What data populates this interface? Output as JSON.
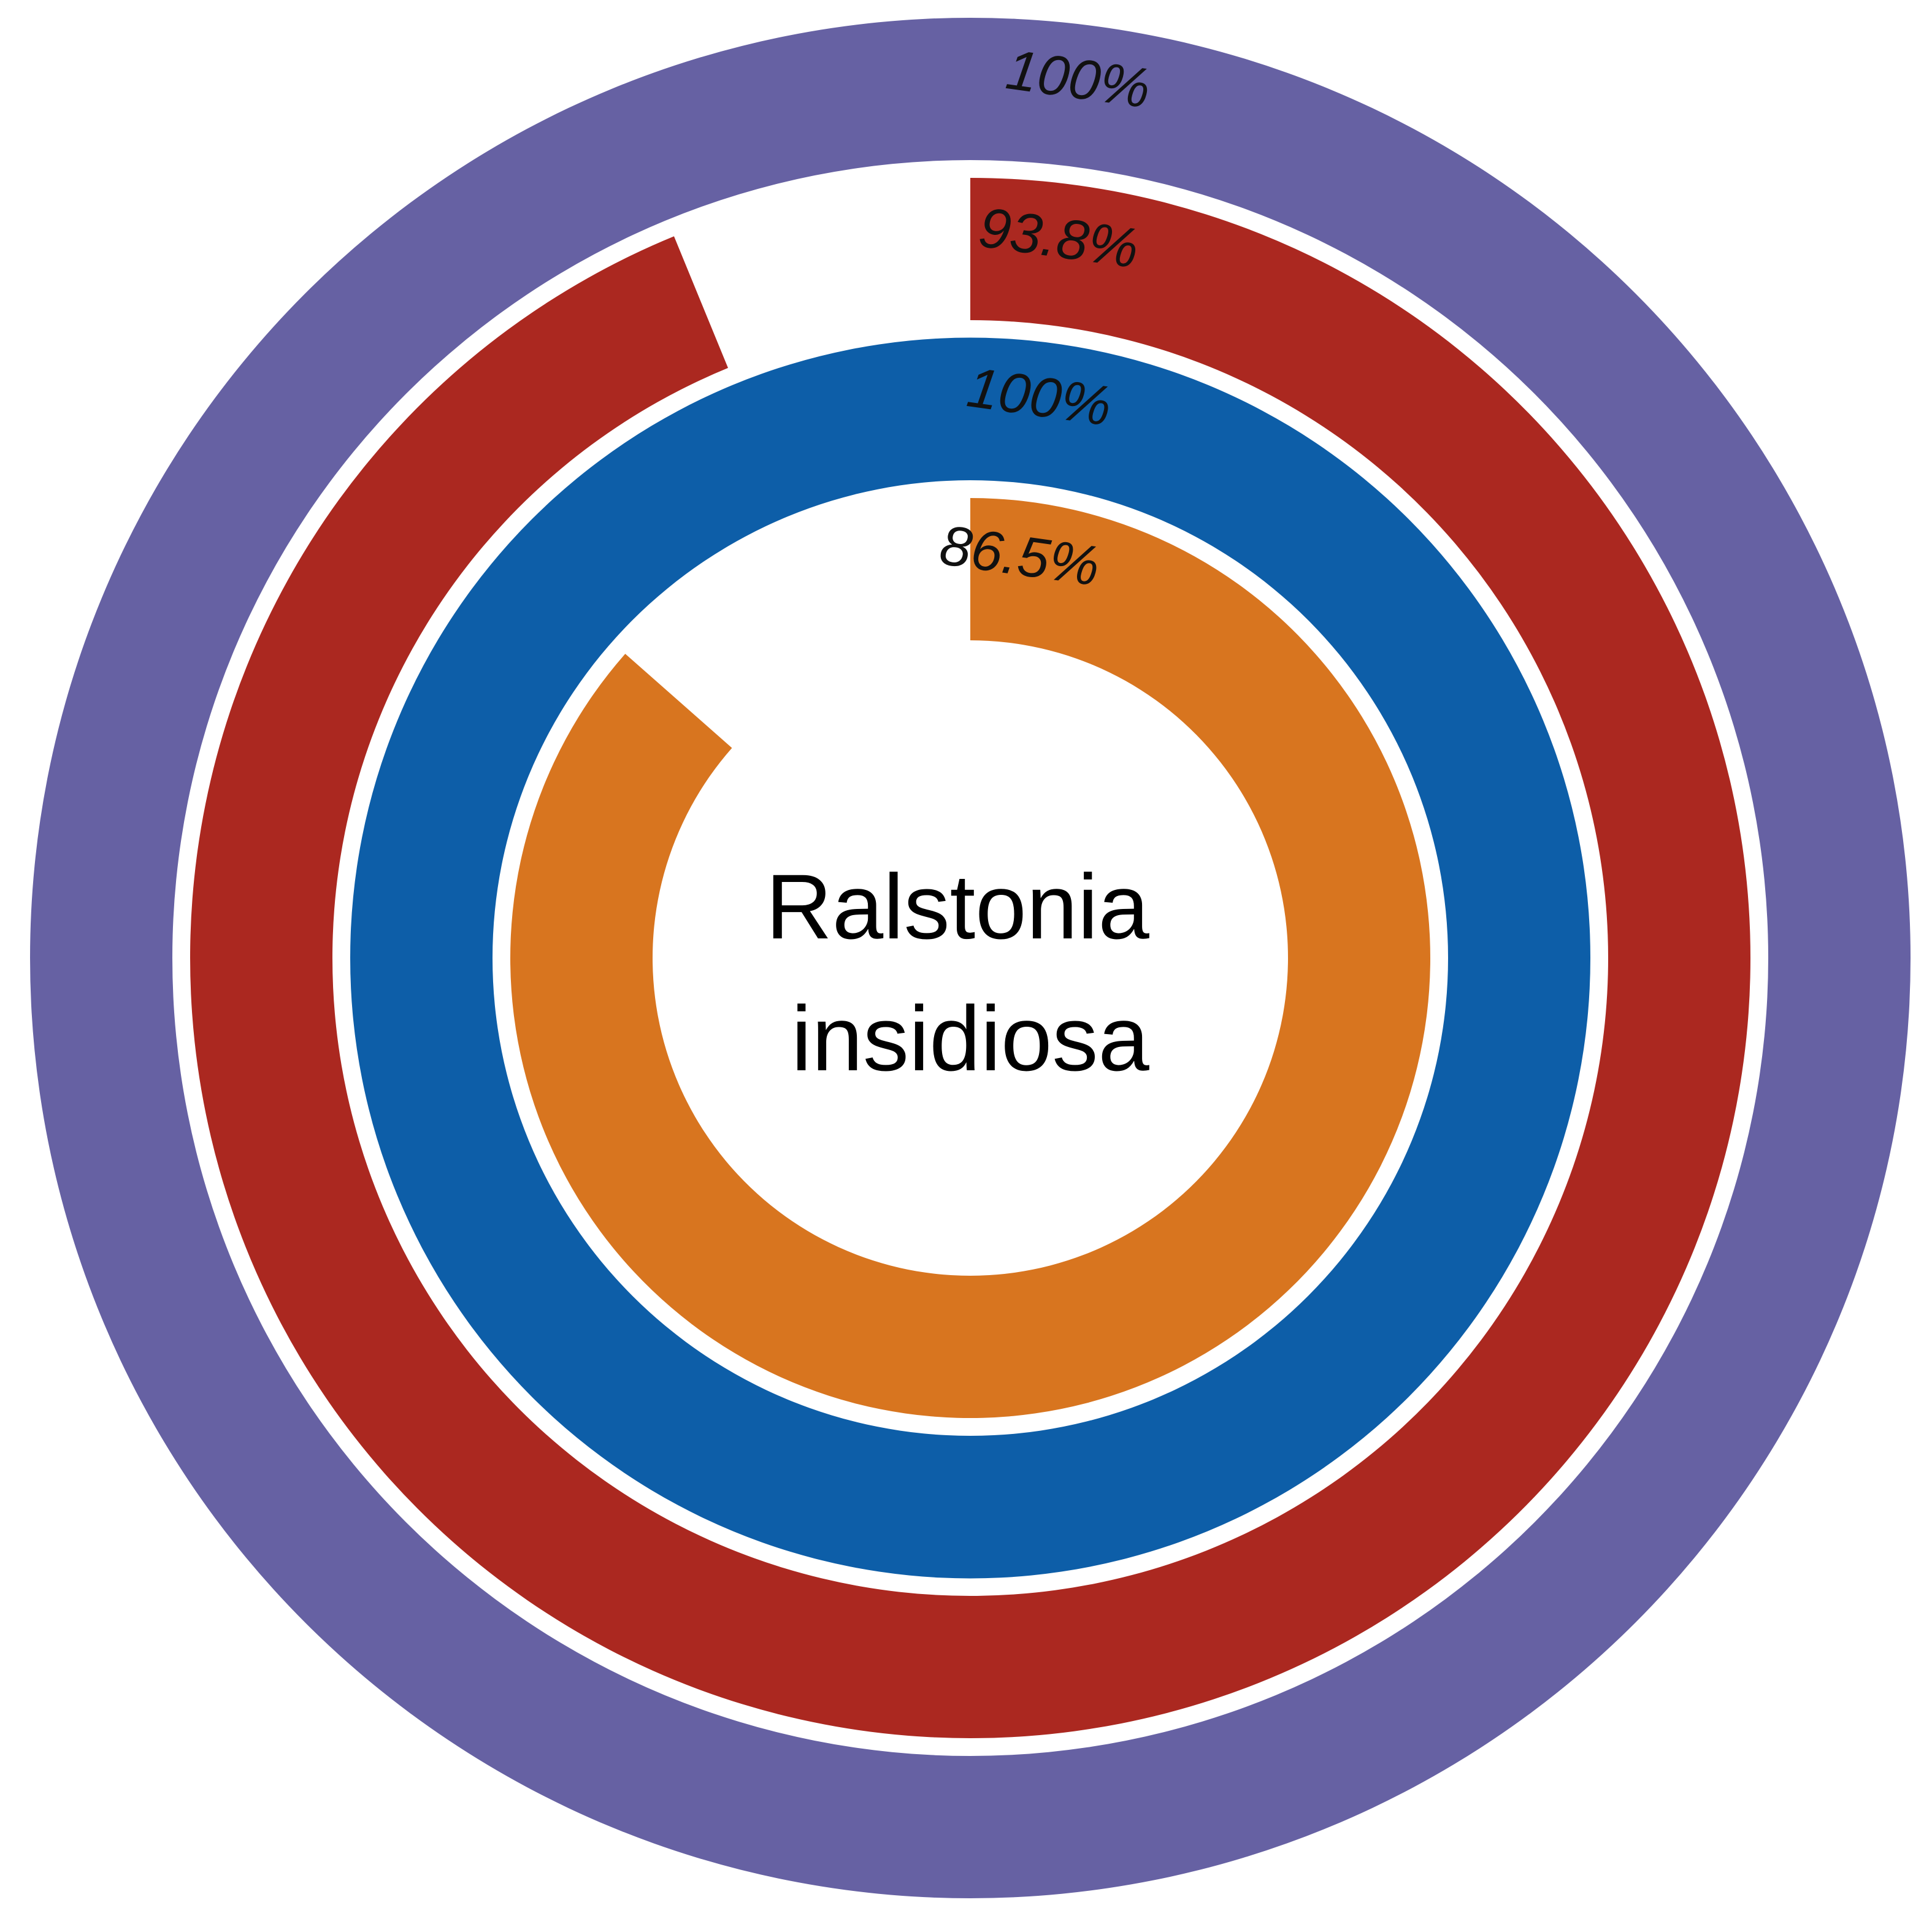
{
  "chart_data": {
    "type": "radial-bar",
    "center_label_lines": [
      "Ralstonia",
      "insidiosa"
    ],
    "max_value": 100,
    "rings": [
      {
        "value": 100,
        "label": "100%",
        "color": "#6661a3"
      },
      {
        "value": 93.8,
        "label": "93.8%",
        "color": "#ab2820"
      },
      {
        "value": 100,
        "label": "100%",
        "color": "#0d5ea8"
      },
      {
        "value": 86.5,
        "label": "86.5%",
        "color": "#d8751f"
      }
    ]
  }
}
